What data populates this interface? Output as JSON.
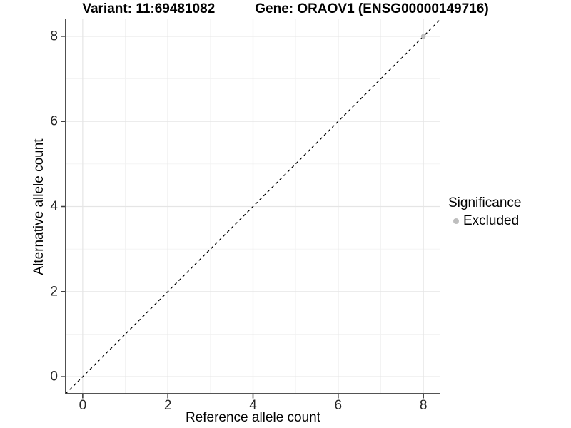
{
  "header": {
    "variant_title": "Variant: 11:69481082",
    "gene_title": "Gene: ORAOV1 (ENSG00000149716)"
  },
  "legend": {
    "title": "Significance",
    "items": [
      {
        "label": "Excluded",
        "color": "#bebebe",
        "marker": "circle"
      }
    ]
  },
  "chart_data": {
    "type": "scatter",
    "xlabel": "Reference allele count",
    "ylabel": "Alternative allele count",
    "xlim": [
      -0.4,
      8.4
    ],
    "ylim": [
      -0.4,
      8.4
    ],
    "x_major_ticks": [
      0,
      2,
      4,
      6,
      8
    ],
    "y_major_ticks": [
      0,
      2,
      4,
      6,
      8
    ],
    "x_minor_gridlines": [
      1,
      3,
      5,
      7
    ],
    "y_minor_gridlines": [
      1,
      3,
      5,
      7
    ],
    "grid": "major+minor",
    "legend_position": "right",
    "reference_line": {
      "type": "identity",
      "slope": 1,
      "intercept": 0,
      "style": "dashed",
      "color": "#000000"
    },
    "series": [
      {
        "name": "Excluded",
        "color": "#bebebe",
        "marker": "circle",
        "points": [
          {
            "x": 8,
            "y": 8
          }
        ]
      }
    ],
    "colors": {
      "panel_background": "#ffffff",
      "grid_major": "#e5e5e5",
      "grid_minor": "#f2f2f2",
      "axis_line": "#3d3d3d",
      "tick_text": "#262626"
    }
  }
}
